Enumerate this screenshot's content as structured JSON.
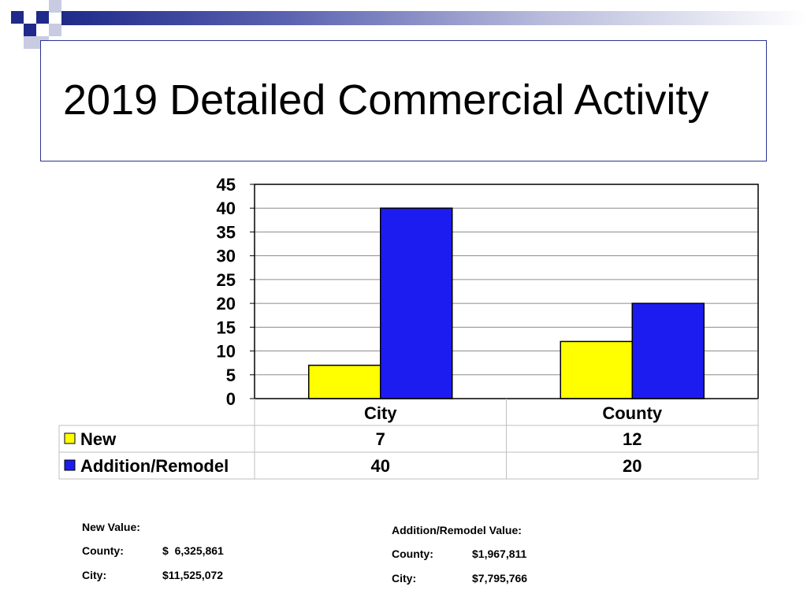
{
  "slide": {
    "title": "2019 Detailed Commercial Activity"
  },
  "colors": {
    "accent": "#1f2a8a",
    "new": "#ffff00",
    "addition": "#1c1cf0"
  },
  "chart_data": {
    "type": "bar",
    "categories": [
      "City",
      "County"
    ],
    "series": [
      {
        "name": "New",
        "values": [
          7,
          12
        ],
        "color": "#ffff00"
      },
      {
        "name": "Addition/Remodel",
        "values": [
          40,
          20
        ],
        "color": "#1c1cf0"
      }
    ],
    "ylim": [
      0,
      45
    ],
    "yticks": [
      "0",
      "5",
      "10",
      "15",
      "20",
      "25",
      "30",
      "35",
      "40",
      "45"
    ],
    "table": {
      "rows": [
        {
          "label": "New",
          "values": [
            "7",
            "12"
          ]
        },
        {
          "label": "Addition/Remodel",
          "values": [
            "40",
            "20"
          ]
        }
      ]
    },
    "grid": true
  },
  "notes": {
    "new_value": {
      "heading": "New Value:",
      "county_label": "County:",
      "county_value": "$  6,325,861",
      "city_label": "City:",
      "city_value": "$11,525,072"
    },
    "addition_value": {
      "heading": "Addition/Remodel Value:",
      "county_label": "County:",
      "county_value": "$1,967,811",
      "city_label": "City:",
      "city_value": "$7,795,766"
    }
  }
}
